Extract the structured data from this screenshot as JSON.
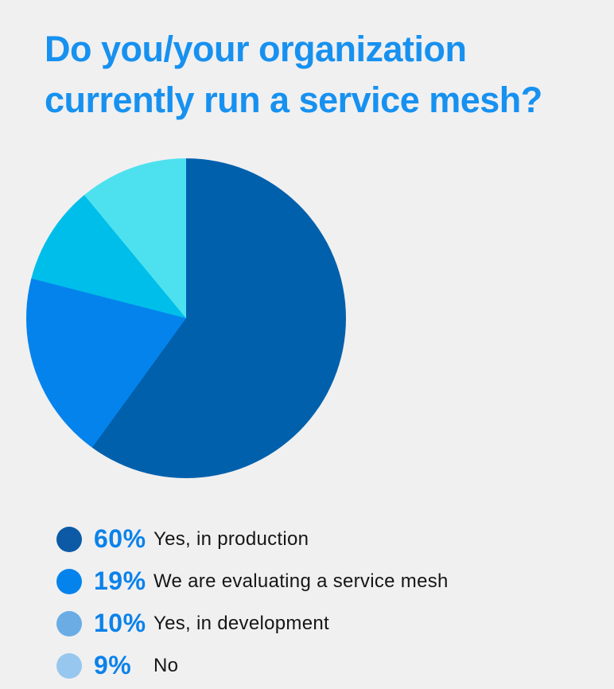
{
  "page": {
    "background_color": "#F0F0F1"
  },
  "title": {
    "text": "Do you/your organization currently run a service mesh?",
    "lines": [
      "Do you/your organization",
      "currently run a service mesh?"
    ],
    "color": "#1791F0"
  },
  "chart_data": {
    "type": "pie",
    "title": "Do you/your organization currently run a service mesh?",
    "start_angle_deg": 0,
    "direction": "clockwise",
    "unit": "%",
    "slices": [
      {
        "label": "Yes, in production",
        "value": 60,
        "percent_label": "60%",
        "slice_color": "#0060AC",
        "legend_dot_color": "#0C5AA6"
      },
      {
        "label": "We are evaluating a service mesh",
        "value": 19,
        "percent_label": "19%",
        "slice_color": "#0583EC",
        "legend_dot_color": "#0583EC"
      },
      {
        "label": "Yes, in development",
        "value": 10,
        "percent_label": "10%",
        "slice_color": "#00BEEA",
        "legend_dot_color": "#6BACE4"
      },
      {
        "label": "No",
        "value": 9,
        "percent_label": "9%",
        "slice_color": "#4DE1EF",
        "legend_dot_color": "#97C7EE"
      }
    ],
    "legend_position": "bottom-left",
    "percent_text_color": "#0B82EA",
    "label_text_color": "#161616"
  }
}
